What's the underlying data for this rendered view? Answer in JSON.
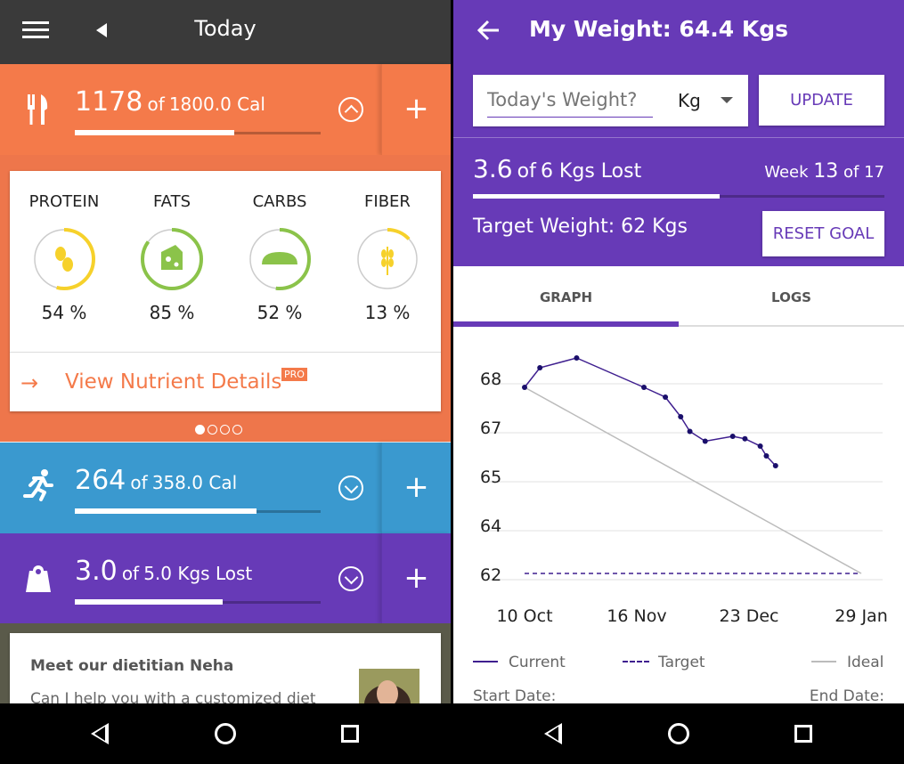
{
  "left": {
    "header": {
      "title": "Today"
    },
    "food": {
      "value": "1178",
      "of": "of",
      "goal": "1800.0 Cal",
      "progress": 0.65
    },
    "nutrients": [
      {
        "label": "PROTEIN",
        "pct": "54 %",
        "fraction": 0.54,
        "color": "#f6d12b",
        "icon": "beans-icon"
      },
      {
        "label": "FATS",
        "pct": "85 %",
        "fraction": 0.85,
        "color": "#8bc34a",
        "icon": "cheese-icon"
      },
      {
        "label": "CARBS",
        "pct": "52 %",
        "fraction": 0.52,
        "color": "#8bc34a",
        "icon": "bread-icon"
      },
      {
        "label": "FIBER",
        "pct": "13 %",
        "fraction": 0.13,
        "color": "#f6d12b",
        "icon": "wheat-icon"
      }
    ],
    "view_details": {
      "label": "View Nutrient Details",
      "badge": "PRO"
    },
    "exercise": {
      "value": "264",
      "of": "of",
      "goal": "358.0 Cal",
      "progress": 0.74
    },
    "weight": {
      "value": "3.0",
      "of": "of",
      "goal": "5.0 Kgs Lost",
      "progress": 0.6
    },
    "dietitian": {
      "title": "Meet our dietitian Neha",
      "text": "Can I help you with a customized diet"
    },
    "colors": {
      "food": "#f47a4a",
      "exercise": "#3a99cf",
      "weight": "#673ab7"
    }
  },
  "right": {
    "header": {
      "title": "My Weight: 64.4 Kgs"
    },
    "input": {
      "placeholder": "Today's Weight?",
      "unit": "Kg"
    },
    "update_label": "UPDATE",
    "lost": {
      "value": "3.6",
      "of": "of",
      "goal": "6 Kgs Lost",
      "progress": 0.6
    },
    "week": {
      "prefix": "Week",
      "num": "13",
      "suffix": "of 17"
    },
    "target": "Target Weight: 62 Kgs",
    "reset_label": "RESET GOAL",
    "tabs": [
      "GRAPH",
      "LOGS"
    ],
    "legend": [
      "Current",
      "Target",
      "Ideal"
    ],
    "start_label": "Start Date:",
    "end_label": "End Date:"
  },
  "chart_data": {
    "type": "line",
    "x_ticks": [
      "10 Oct",
      "16 Nov",
      "23 Dec",
      "29 Jan"
    ],
    "y_ticks": [
      "68",
      "67",
      "65",
      "64",
      "62"
    ],
    "series": [
      {
        "name": "Current",
        "values": [
          [
            0,
            67.8
          ],
          [
            5,
            68.2
          ],
          [
            17,
            68.4
          ],
          [
            39,
            67.8
          ],
          [
            46,
            67.6
          ],
          [
            51,
            67.2
          ],
          [
            54,
            66.8
          ],
          [
            59,
            66.4
          ],
          [
            68,
            66.6
          ],
          [
            72,
            66.5
          ],
          [
            77,
            66.2
          ],
          [
            79,
            65.8
          ],
          [
            82,
            65.4
          ]
        ]
      },
      {
        "name": "Target",
        "values": [
          [
            0,
            62
          ],
          [
            110,
            62
          ]
        ]
      },
      {
        "name": "Ideal",
        "values": [
          [
            0,
            67.8
          ],
          [
            110,
            62
          ]
        ]
      }
    ]
  }
}
